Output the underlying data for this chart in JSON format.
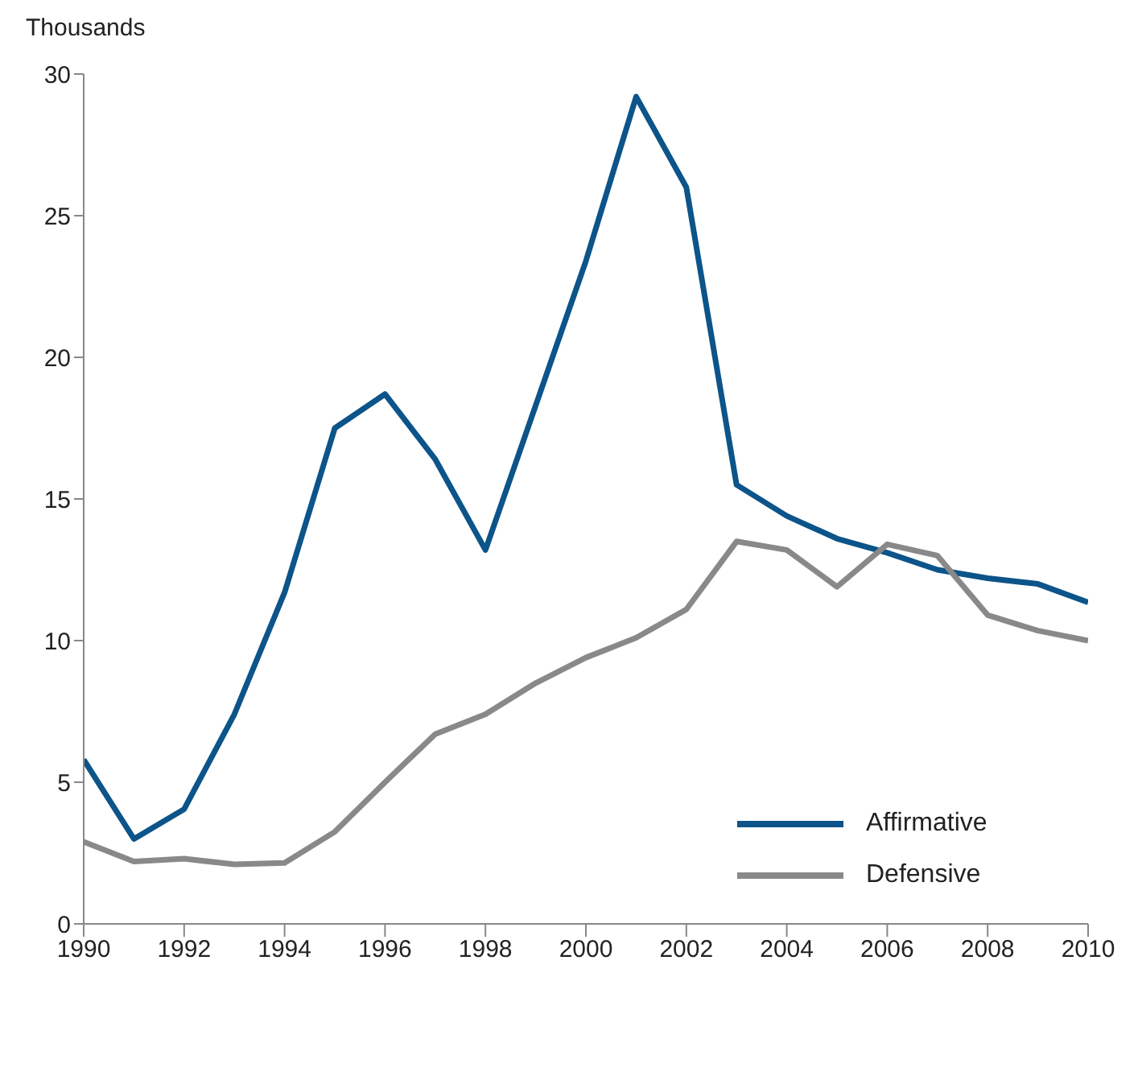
{
  "chart_data": {
    "type": "line",
    "ylabel": "Thousands",
    "x": [
      1990,
      1991,
      1992,
      1993,
      1994,
      1995,
      1996,
      1997,
      1998,
      1999,
      2000,
      2001,
      2002,
      2003,
      2004,
      2005,
      2006,
      2007,
      2008,
      2009,
      2010
    ],
    "series": [
      {
        "name": "Affirmative",
        "color": "#0c5489",
        "values": [
          5.8,
          3.0,
          4.05,
          7.4,
          11.7,
          17.5,
          18.7,
          16.4,
          13.2,
          18.3,
          23.4,
          29.2,
          26.0,
          15.5,
          14.4,
          13.6,
          13.1,
          12.5,
          12.2,
          12.0,
          11.35
        ]
      },
      {
        "name": "Defensive",
        "color": "#898989",
        "values": [
          2.9,
          2.2,
          2.3,
          2.1,
          2.15,
          3.25,
          5.0,
          6.7,
          7.4,
          8.5,
          9.4,
          10.1,
          11.1,
          13.5,
          13.2,
          11.9,
          13.4,
          13.0,
          10.9,
          10.35,
          10.0
        ]
      }
    ],
    "xlim": [
      1990,
      2010
    ],
    "xticks": [
      1990,
      1992,
      1994,
      1996,
      1998,
      2000,
      2002,
      2004,
      2006,
      2008,
      2010
    ],
    "ylim": [
      0,
      30
    ],
    "yticks": [
      0,
      5,
      10,
      15,
      20,
      25,
      30
    ],
    "grid": false,
    "legend": "bottom right",
    "marker": "none",
    "line_style": "solid"
  }
}
